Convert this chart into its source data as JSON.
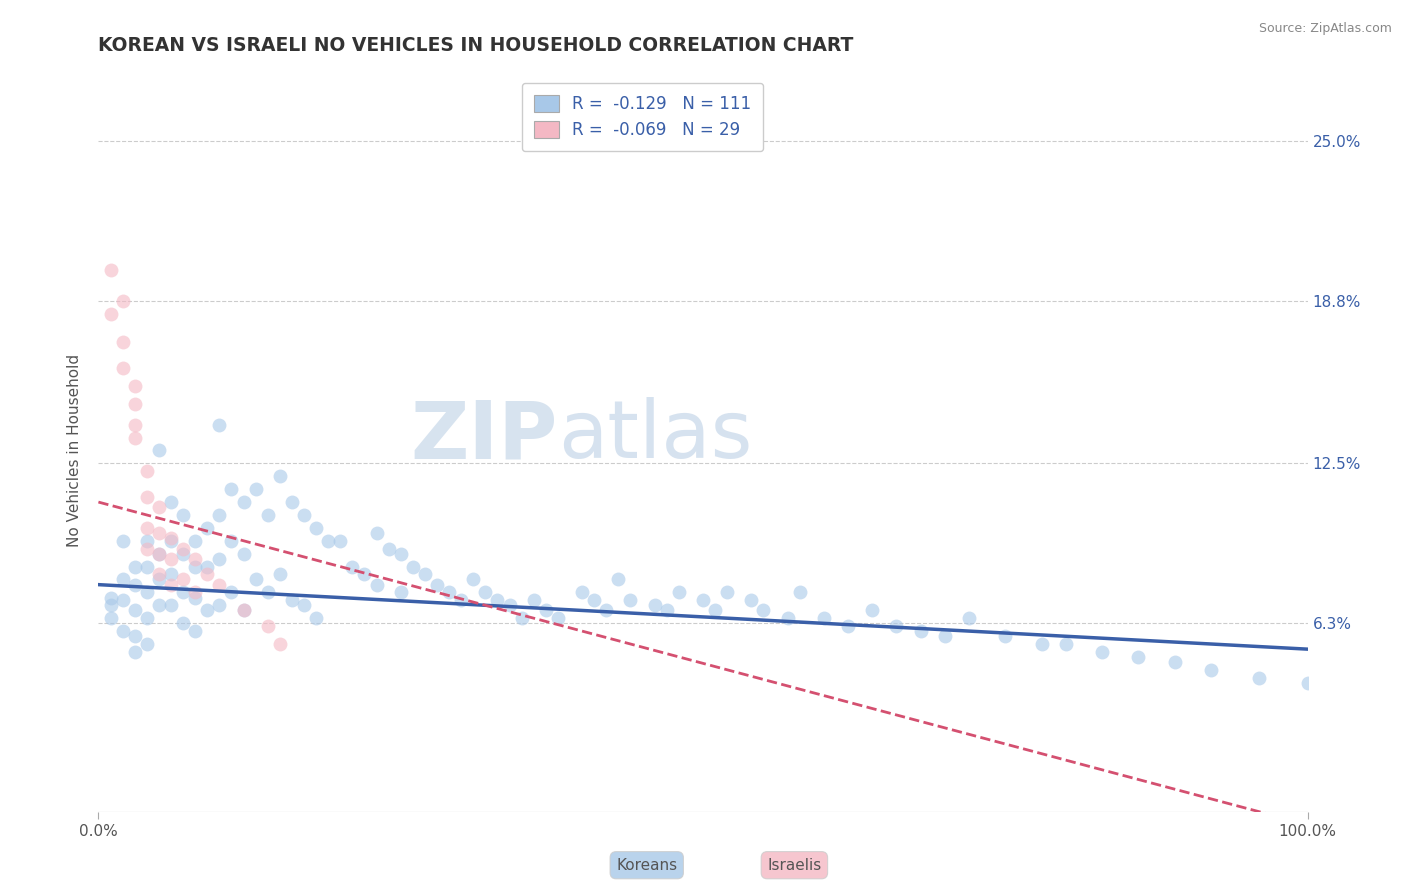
{
  "title": "KOREAN VS ISRAELI NO VEHICLES IN HOUSEHOLD CORRELATION CHART",
  "source": "Source: ZipAtlas.com",
  "ylabel": "No Vehicles in Household",
  "xlim": [
    0.0,
    1.0
  ],
  "ylim": [
    -0.01,
    0.27
  ],
  "y_tick_labels": [
    "6.3%",
    "12.5%",
    "18.8%",
    "25.0%"
  ],
  "y_tick_values": [
    0.063,
    0.125,
    0.188,
    0.25
  ],
  "watermark_zip": "ZIP",
  "watermark_atlas": "atlas",
  "legend_line1": "R =  -0.129   N = 111",
  "legend_line2": "R =  -0.069   N = 29",
  "korean_scatter_x": [
    0.01,
    0.01,
    0.01,
    0.02,
    0.02,
    0.02,
    0.02,
    0.03,
    0.03,
    0.03,
    0.03,
    0.03,
    0.04,
    0.04,
    0.04,
    0.04,
    0.04,
    0.05,
    0.05,
    0.05,
    0.05,
    0.06,
    0.06,
    0.06,
    0.06,
    0.07,
    0.07,
    0.07,
    0.07,
    0.08,
    0.08,
    0.08,
    0.08,
    0.09,
    0.09,
    0.09,
    0.1,
    0.1,
    0.1,
    0.1,
    0.11,
    0.11,
    0.11,
    0.12,
    0.12,
    0.12,
    0.13,
    0.13,
    0.14,
    0.14,
    0.15,
    0.15,
    0.16,
    0.16,
    0.17,
    0.17,
    0.18,
    0.18,
    0.19,
    0.2,
    0.21,
    0.22,
    0.23,
    0.23,
    0.24,
    0.25,
    0.25,
    0.26,
    0.27,
    0.28,
    0.29,
    0.3,
    0.31,
    0.32,
    0.33,
    0.34,
    0.35,
    0.36,
    0.37,
    0.38,
    0.4,
    0.41,
    0.42,
    0.43,
    0.44,
    0.46,
    0.47,
    0.48,
    0.5,
    0.51,
    0.52,
    0.54,
    0.55,
    0.57,
    0.58,
    0.6,
    0.62,
    0.64,
    0.66,
    0.68,
    0.7,
    0.72,
    0.75,
    0.78,
    0.8,
    0.83,
    0.86,
    0.89,
    0.92,
    0.96,
    1.0
  ],
  "korean_scatter_y": [
    0.073,
    0.07,
    0.065,
    0.095,
    0.08,
    0.072,
    0.06,
    0.085,
    0.078,
    0.068,
    0.058,
    0.052,
    0.095,
    0.085,
    0.075,
    0.065,
    0.055,
    0.13,
    0.09,
    0.08,
    0.07,
    0.11,
    0.095,
    0.082,
    0.07,
    0.105,
    0.09,
    0.075,
    0.063,
    0.095,
    0.085,
    0.073,
    0.06,
    0.1,
    0.085,
    0.068,
    0.14,
    0.105,
    0.088,
    0.07,
    0.115,
    0.095,
    0.075,
    0.11,
    0.09,
    0.068,
    0.115,
    0.08,
    0.105,
    0.075,
    0.12,
    0.082,
    0.11,
    0.072,
    0.105,
    0.07,
    0.1,
    0.065,
    0.095,
    0.095,
    0.085,
    0.082,
    0.098,
    0.078,
    0.092,
    0.09,
    0.075,
    0.085,
    0.082,
    0.078,
    0.075,
    0.072,
    0.08,
    0.075,
    0.072,
    0.07,
    0.065,
    0.072,
    0.068,
    0.065,
    0.075,
    0.072,
    0.068,
    0.08,
    0.072,
    0.07,
    0.068,
    0.075,
    0.072,
    0.068,
    0.075,
    0.072,
    0.068,
    0.065,
    0.075,
    0.065,
    0.062,
    0.068,
    0.062,
    0.06,
    0.058,
    0.065,
    0.058,
    0.055,
    0.055,
    0.052,
    0.05,
    0.048,
    0.045,
    0.042,
    0.04
  ],
  "israeli_scatter_x": [
    0.01,
    0.01,
    0.02,
    0.02,
    0.02,
    0.03,
    0.03,
    0.03,
    0.03,
    0.04,
    0.04,
    0.04,
    0.04,
    0.05,
    0.05,
    0.05,
    0.05,
    0.06,
    0.06,
    0.06,
    0.07,
    0.07,
    0.08,
    0.08,
    0.09,
    0.1,
    0.12,
    0.14,
    0.15
  ],
  "israeli_scatter_y": [
    0.2,
    0.183,
    0.188,
    0.172,
    0.162,
    0.155,
    0.148,
    0.14,
    0.135,
    0.122,
    0.112,
    0.1,
    0.092,
    0.108,
    0.098,
    0.09,
    0.082,
    0.096,
    0.088,
    0.078,
    0.092,
    0.08,
    0.088,
    0.075,
    0.082,
    0.078,
    0.068,
    0.062,
    0.055
  ],
  "korean_line_x": [
    0.0,
    1.0
  ],
  "korean_line_y": [
    0.078,
    0.053
  ],
  "israeli_line_x": [
    0.0,
    1.0
  ],
  "israeli_line_y": [
    0.11,
    -0.015
  ],
  "korean_color": "#a8c8e8",
  "korean_line_color": "#3a5fa8",
  "israeli_color": "#f4b8c4",
  "israeli_line_color": "#d45070",
  "bg_color": "#ffffff",
  "grid_color": "#cccccc",
  "marker_size": 100,
  "marker_alpha": 0.6,
  "title_fontsize": 13.5,
  "legend_fontsize": 12,
  "axis_fontsize": 11
}
